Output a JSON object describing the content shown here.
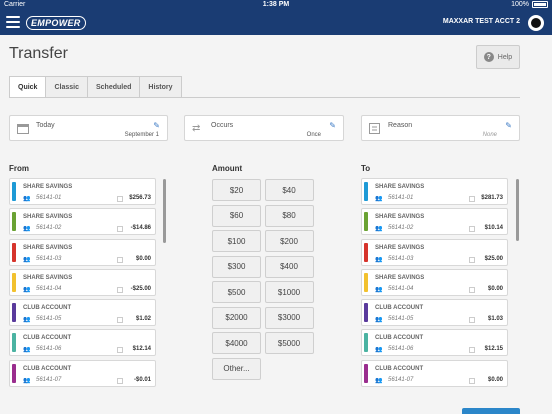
{
  "statusbar": {
    "carrier": "Carrier",
    "time": "1:38 PM",
    "battery": "100%"
  },
  "header": {
    "logo": "EMPOWER",
    "account": "MAXXAR TEST ACCT 2"
  },
  "page": {
    "title": "Transfer",
    "help_label": "Help"
  },
  "tabs": [
    {
      "label": "Quick",
      "active": true
    },
    {
      "label": "Classic",
      "active": false
    },
    {
      "label": "Scheduled",
      "active": false
    },
    {
      "label": "History",
      "active": false
    }
  ],
  "fields": {
    "date": {
      "label": "Today",
      "value": "September 1",
      "icon": "calendar-icon"
    },
    "occurs": {
      "label": "Occurs",
      "value": "Once",
      "icon": "repeat-icon"
    },
    "reason": {
      "label": "Reason",
      "value": "None",
      "icon": "note-icon"
    }
  },
  "columns": {
    "from": "From",
    "amount": "Amount",
    "to": "To"
  },
  "from_accounts": [
    {
      "name": "SHARE SAVINGS",
      "number": "56141-01",
      "balance": "$256.73",
      "color": "#1e9ad6"
    },
    {
      "name": "SHARE SAVINGS",
      "number": "56141-02",
      "balance": "-$14.86",
      "color": "#6aa233"
    },
    {
      "name": "SHARE SAVINGS",
      "number": "56141-03",
      "balance": "$0.00",
      "color": "#d6342c"
    },
    {
      "name": "SHARE SAVINGS",
      "number": "56141-04",
      "balance": "-$25.00",
      "color": "#f2c12e"
    },
    {
      "name": "CLUB ACCOUNT",
      "number": "56141-05",
      "balance": "$1.02",
      "color": "#5a3a9c"
    },
    {
      "name": "CLUB ACCOUNT",
      "number": "56141-06",
      "balance": "$12.14",
      "color": "#4bb3a2"
    },
    {
      "name": "CLUB ACCOUNT",
      "number": "56141-07",
      "balance": "-$0.01",
      "color": "#9a2d8e"
    }
  ],
  "to_accounts": [
    {
      "name": "SHARE SAVINGS",
      "number": "56141-01",
      "balance": "$281.73",
      "color": "#1e9ad6"
    },
    {
      "name": "SHARE SAVINGS",
      "number": "56141-02",
      "balance": "$10.14",
      "color": "#6aa233"
    },
    {
      "name": "SHARE SAVINGS",
      "number": "56141-03",
      "balance": "$25.00",
      "color": "#d6342c"
    },
    {
      "name": "SHARE SAVINGS",
      "number": "56141-04",
      "balance": "$0.00",
      "color": "#f2c12e"
    },
    {
      "name": "CLUB ACCOUNT",
      "number": "56141-05",
      "balance": "$1.03",
      "color": "#5a3a9c"
    },
    {
      "name": "CLUB ACCOUNT",
      "number": "56141-06",
      "balance": "$12.15",
      "color": "#4bb3a2"
    },
    {
      "name": "CLUB ACCOUNT",
      "number": "56141-07",
      "balance": "$0.00",
      "color": "#9a2d8e"
    }
  ],
  "amounts": [
    "$20",
    "$40",
    "$60",
    "$80",
    "$100",
    "$200",
    "$300",
    "$400",
    "$500",
    "$1000",
    "$2000",
    "$3000",
    "$4000",
    "$5000",
    "Other..."
  ]
}
